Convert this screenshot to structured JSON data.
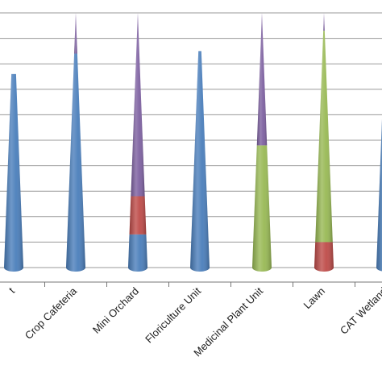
{
  "chart_data": {
    "type": "bar",
    "bar_shape": "cone",
    "stacked": true,
    "categories": [
      "Crop Unit",
      "Crop Cafeteria",
      "Mini Orchard",
      "Floriculture Unit",
      "Medicinal Plant Unit",
      "Lawn",
      "CAT Wetland"
    ],
    "visible_category_labels": [
      "t",
      "Crop Cafeteria",
      "Mini Orchard",
      "Floriculture Unit",
      "Medicinal Plant Unit",
      "Lawn",
      "CAT Wetland"
    ],
    "series": [
      {
        "color": "#4a7ebb",
        "values": [
          76,
          84,
          13,
          85,
          0,
          0,
          87
        ]
      },
      {
        "color": "#be4b48",
        "values": [
          0,
          0,
          15,
          0,
          0,
          10,
          0
        ]
      },
      {
        "color": "#98b954",
        "values": [
          0,
          0,
          0,
          0,
          48,
          83,
          0
        ]
      },
      {
        "color": "#7d60a0",
        "values": [
          0,
          16,
          72,
          0,
          52,
          7,
          0
        ]
      }
    ],
    "ylim": [
      0,
      100
    ],
    "gridline_count": 11,
    "grid": true,
    "legend": "none",
    "title": "",
    "xlabel": "",
    "ylabel": ""
  }
}
